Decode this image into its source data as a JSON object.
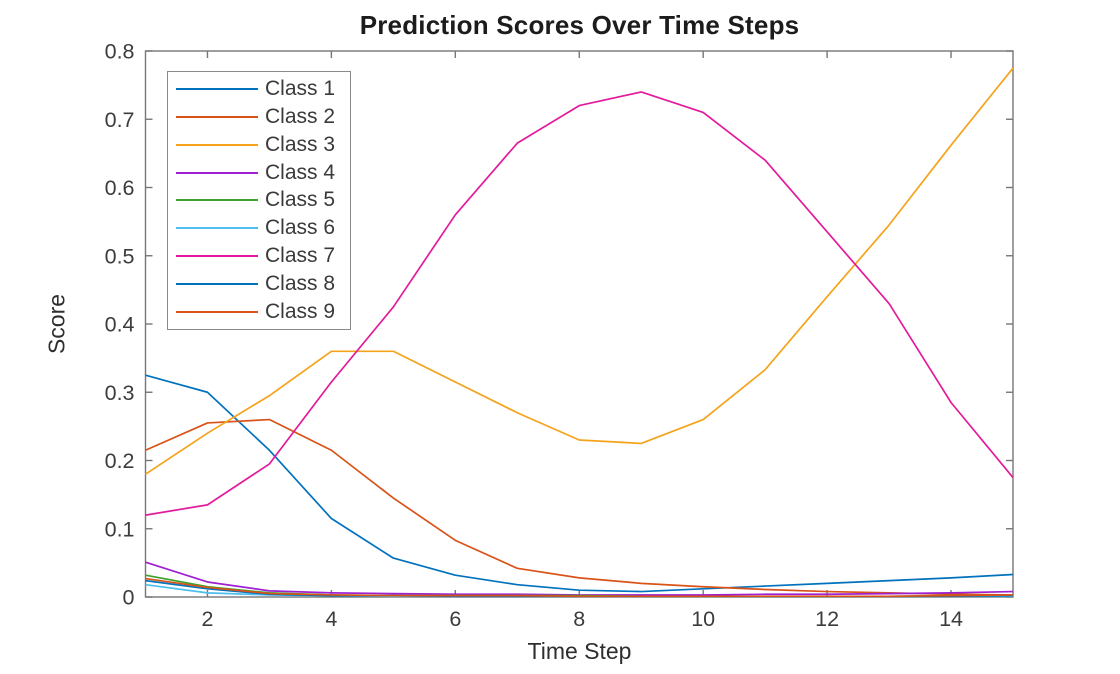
{
  "figure": {
    "title": "Prediction Scores Over Time Steps",
    "xlabel": "Time Step",
    "ylabel": "Score"
  },
  "colors": {
    "background": "#ffffff",
    "axis_line": "#767676",
    "tick_label": "#3c3c3c",
    "title_text": "#1c1c1c",
    "legend_border": "#8a8a8a"
  },
  "chart_data": {
    "type": "line",
    "title": "Prediction Scores Over Time Steps",
    "xlabel": "Time Step",
    "ylabel": "Score",
    "xlim": [
      1,
      15
    ],
    "ylim": [
      0,
      0.8
    ],
    "grid": false,
    "legend_position": "upper-left-inside",
    "x": [
      1,
      2,
      3,
      4,
      5,
      6,
      7,
      8,
      9,
      10,
      11,
      12,
      13,
      14,
      15
    ],
    "xtick_labels": [
      "2",
      "4",
      "6",
      "8",
      "10",
      "12",
      "14"
    ],
    "xtick_values": [
      2,
      4,
      6,
      8,
      10,
      12,
      14
    ],
    "ytick_labels": [
      "0",
      "0.1",
      "0.2",
      "0.3",
      "0.4",
      "0.5",
      "0.6",
      "0.7",
      "0.8"
    ],
    "ytick_values": [
      0,
      0.1,
      0.2,
      0.3,
      0.4,
      0.5,
      0.6,
      0.7,
      0.8
    ],
    "series": [
      {
        "name": "Class 1",
        "color": "#0072BD",
        "values": [
          0.325,
          0.3,
          0.215,
          0.115,
          0.057,
          0.032,
          0.018,
          0.01,
          0.008,
          0.012,
          0.016,
          0.02,
          0.024,
          0.028,
          0.033
        ]
      },
      {
        "name": "Class 2",
        "color": "#D95319",
        "values": [
          0.215,
          0.255,
          0.26,
          0.215,
          0.145,
          0.083,
          0.042,
          0.028,
          0.02,
          0.015,
          0.011,
          0.008,
          0.006,
          0.004,
          0.003
        ]
      },
      {
        "name": "Class 3",
        "color": "#F5A31A",
        "values": [
          0.18,
          0.24,
          0.295,
          0.36,
          0.36,
          0.315,
          0.27,
          0.23,
          0.225,
          0.26,
          0.333,
          0.44,
          0.545,
          0.662,
          0.775
        ]
      },
      {
        "name": "Class 4",
        "color": "#9E20D0",
        "values": [
          0.051,
          0.022,
          0.009,
          0.006,
          0.005,
          0.004,
          0.004,
          0.003,
          0.003,
          0.003,
          0.004,
          0.004,
          0.005,
          0.006,
          0.008
        ]
      },
      {
        "name": "Class 5",
        "color": "#3EA32E",
        "values": [
          0.032,
          0.015,
          0.006,
          0.003,
          0.002,
          0.002,
          0.002,
          0.002,
          0.001,
          0.001,
          0.001,
          0.001,
          0.001,
          0.002,
          0.002
        ]
      },
      {
        "name": "Class 6",
        "color": "#4DBEEE",
        "values": [
          0.018,
          0.006,
          0.003,
          0.002,
          0.001,
          0.001,
          0.001,
          0.001,
          0.001,
          0.001,
          0.001,
          0.001,
          0.001,
          0.001,
          0.001
        ]
      },
      {
        "name": "Class 7",
        "color": "#E31A9C",
        "values": [
          0.12,
          0.135,
          0.195,
          0.315,
          0.425,
          0.56,
          0.665,
          0.72,
          0.74,
          0.71,
          0.64,
          0.535,
          0.43,
          0.285,
          0.175
        ]
      },
      {
        "name": "Class 8",
        "color": "#0072BD",
        "values": [
          0.024,
          0.012,
          0.004,
          0.002,
          0.002,
          0.001,
          0.001,
          0.001,
          0.001,
          0.001,
          0.001,
          0.001,
          0.001,
          0.001,
          0.002
        ]
      },
      {
        "name": "Class 9",
        "color": "#D95319",
        "values": [
          0.027,
          0.014,
          0.005,
          0.003,
          0.002,
          0.002,
          0.002,
          0.001,
          0.001,
          0.001,
          0.001,
          0.001,
          0.001,
          0.002,
          0.003
        ]
      }
    ]
  }
}
